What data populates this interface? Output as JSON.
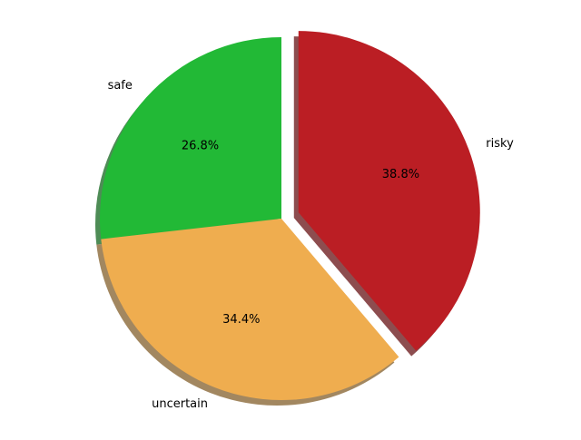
{
  "chart_data": {
    "type": "pie",
    "categories": [
      "safe",
      "uncertain",
      "risky"
    ],
    "values": [
      26.8,
      34.4,
      38.8
    ],
    "percent_labels": [
      "26.8%",
      "34.4%",
      "38.8%"
    ],
    "colors": [
      "#22b936",
      "#efad4f",
      "#bb1e24"
    ],
    "exploded": [
      false,
      false,
      true
    ],
    "shadow": true,
    "start_angle": "90 (clockwise)"
  }
}
